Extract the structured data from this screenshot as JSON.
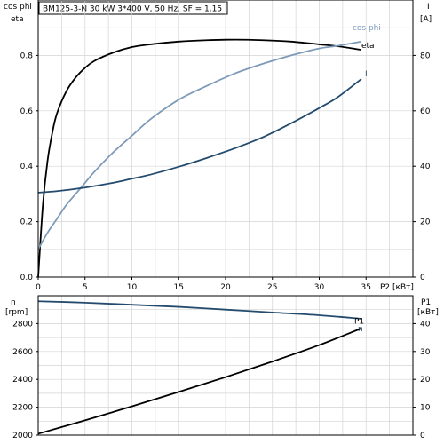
{
  "chart_data": [
    {
      "type": "line",
      "title": "BM125-3-N   30 kW   3*400 V, 50 Hz, SF = 1.15",
      "xlabel": "P2 [кВт]",
      "xlim": [
        0,
        40
      ],
      "x_ticks": [
        0,
        5,
        10,
        15,
        20,
        25,
        30,
        35
      ],
      "ylabel_left": [
        "cos phi",
        "eta"
      ],
      "ylim_left": [
        0,
        1.0
      ],
      "y_ticks_left": [
        0.0,
        0.2,
        0.4,
        0.6,
        0.8
      ],
      "ylabel_right": [
        "I",
        "[A]"
      ],
      "ylim_right": [
        0,
        100
      ],
      "y_ticks_right": [
        0,
        20,
        40,
        60,
        80
      ],
      "grid": true,
      "series": [
        {
          "name": "eta",
          "axis": "left",
          "color": "#000000",
          "x": [
            0,
            0.5,
            1,
            1.5,
            2,
            3,
            4,
            5,
            6,
            8,
            10,
            12,
            15,
            18,
            21,
            24,
            27,
            30,
            32,
            34.5
          ],
          "y": [
            0,
            0.26,
            0.42,
            0.52,
            0.59,
            0.67,
            0.72,
            0.755,
            0.78,
            0.81,
            0.83,
            0.84,
            0.85,
            0.855,
            0.857,
            0.855,
            0.85,
            0.84,
            0.833,
            0.82
          ]
        },
        {
          "name": "cos phi",
          "axis": "left",
          "color": "#7d9ab8",
          "x": [
            0,
            1,
            2,
            3,
            4,
            5,
            6,
            8,
            10,
            12,
            15,
            18,
            21,
            24,
            27,
            30,
            32,
            34.5
          ],
          "y": [
            0.1,
            0.16,
            0.21,
            0.26,
            0.3,
            0.34,
            0.38,
            0.45,
            0.51,
            0.57,
            0.64,
            0.69,
            0.735,
            0.77,
            0.8,
            0.825,
            0.835,
            0.85
          ]
        },
        {
          "name": "I",
          "axis": "right",
          "color": "#244b6e",
          "x": [
            0,
            2,
            5,
            8,
            10,
            12,
            15,
            18,
            21,
            24,
            27,
            30,
            32,
            34.5
          ],
          "y": [
            30.5,
            31,
            32.3,
            34,
            35.5,
            37,
            39.8,
            43,
            46.5,
            50.5,
            55.5,
            61,
            65,
            71.5
          ]
        }
      ]
    },
    {
      "type": "line",
      "xlim": [
        0,
        40
      ],
      "ylabel_left": [
        "n",
        "[rpm]"
      ],
      "ylim_left": [
        2000,
        3000
      ],
      "y_ticks_left": [
        2000,
        2200,
        2400,
        2600,
        2800
      ],
      "ylabel_right": [
        "P1",
        "[кВт]"
      ],
      "ylim_right": [
        0,
        50
      ],
      "y_ticks_right": [
        0,
        10,
        20,
        30,
        40
      ],
      "grid": true,
      "series": [
        {
          "name": "n",
          "axis": "left",
          "color": "#244b6e",
          "x": [
            0,
            5,
            10,
            15,
            20,
            25,
            30,
            34.5
          ],
          "y": [
            2960,
            2950,
            2935,
            2920,
            2900,
            2880,
            2860,
            2835
          ]
        },
        {
          "name": "P1",
          "axis": "right",
          "color": "#000000",
          "x": [
            0,
            5,
            10,
            15,
            20,
            25,
            30,
            34.5
          ],
          "y": [
            0.5,
            5.3,
            10.3,
            15.5,
            20.8,
            26.4,
            32.3,
            38.3
          ]
        }
      ]
    }
  ]
}
